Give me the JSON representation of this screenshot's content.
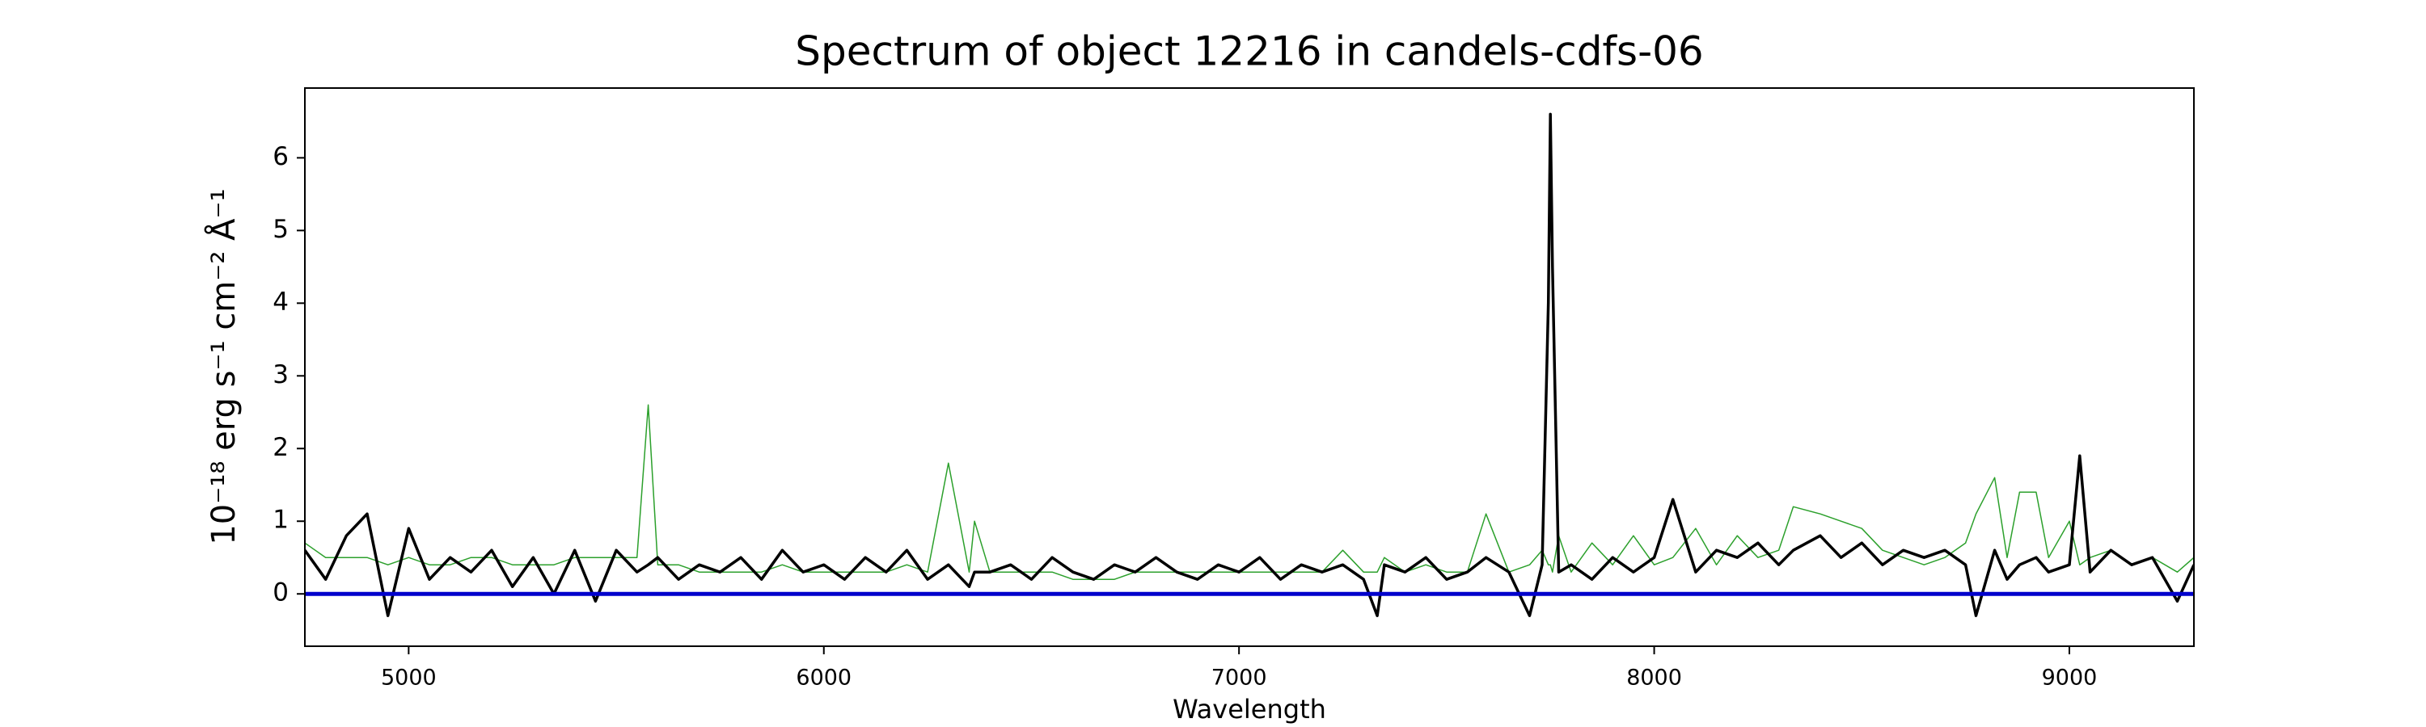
{
  "chart_data": {
    "type": "line",
    "title": "Spectrum of object 12216 in candels-cdfs-06",
    "xlabel": "Wavelength",
    "ylabel": "10⁻¹⁸ erg s⁻¹ cm⁻² Å⁻¹",
    "x": [
      4750,
      4800,
      4850,
      4900,
      4950,
      5000,
      5050,
      5100,
      5150,
      5200,
      5250,
      5300,
      5350,
      5400,
      5450,
      5500,
      5550,
      5577,
      5600,
      5650,
      5700,
      5750,
      5800,
      5850,
      5900,
      5950,
      6000,
      6050,
      6100,
      6150,
      6200,
      6250,
      6300,
      6350,
      6363,
      6400,
      6450,
      6500,
      6550,
      6600,
      6650,
      6700,
      6750,
      6800,
      6850,
      6900,
      6950,
      7000,
      7050,
      7100,
      7150,
      7200,
      7250,
      7300,
      7333,
      7350,
      7400,
      7450,
      7500,
      7550,
      7595,
      7650,
      7700,
      7730,
      7745,
      7750,
      7755,
      7770,
      7800,
      7850,
      7900,
      7950,
      8000,
      8045,
      8100,
      8150,
      8200,
      8250,
      8300,
      8335,
      8400,
      8450,
      8500,
      8550,
      8600,
      8650,
      8700,
      8750,
      8775,
      8820,
      8850,
      8880,
      8920,
      8950,
      9000,
      9025,
      9050,
      9100,
      9150,
      9200,
      9260,
      9300
    ],
    "series": [
      {
        "color": "#2ca02c",
        "width": 1.5,
        "values": [
          0.7,
          0.5,
          0.5,
          0.5,
          0.4,
          0.5,
          0.4,
          0.4,
          0.5,
          0.5,
          0.4,
          0.4,
          0.4,
          0.5,
          0.5,
          0.5,
          0.5,
          2.6,
          0.4,
          0.4,
          0.3,
          0.3,
          0.3,
          0.3,
          0.4,
          0.3,
          0.3,
          0.3,
          0.3,
          0.3,
          0.4,
          0.3,
          1.8,
          0.3,
          1.0,
          0.3,
          0.3,
          0.3,
          0.3,
          0.2,
          0.2,
          0.2,
          0.3,
          0.3,
          0.3,
          0.3,
          0.3,
          0.3,
          0.3,
          0.3,
          0.3,
          0.3,
          0.6,
          0.3,
          0.3,
          0.5,
          0.3,
          0.4,
          0.3,
          0.3,
          1.1,
          0.3,
          0.4,
          0.6,
          0.4,
          0.4,
          0.3,
          0.8,
          0.3,
          0.7,
          0.4,
          0.8,
          0.4,
          0.5,
          0.9,
          0.4,
          0.8,
          0.5,
          0.6,
          1.2,
          1.1,
          1.0,
          0.9,
          0.6,
          0.5,
          0.4,
          0.5,
          0.7,
          1.1,
          1.6,
          0.5,
          1.4,
          1.4,
          0.5,
          1.0,
          0.4,
          0.5,
          0.6,
          0.4,
          0.5,
          0.3,
          0.5
        ]
      },
      {
        "color": "#000000",
        "width": 3.5,
        "values": [
          0.6,
          0.2,
          0.8,
          1.1,
          -0.3,
          0.9,
          0.2,
          0.5,
          0.3,
          0.6,
          0.1,
          0.5,
          0.0,
          0.6,
          -0.1,
          0.6,
          0.3,
          0.4,
          0.5,
          0.2,
          0.4,
          0.3,
          0.5,
          0.2,
          0.6,
          0.3,
          0.4,
          0.2,
          0.5,
          0.3,
          0.6,
          0.2,
          0.4,
          0.1,
          0.3,
          0.3,
          0.4,
          0.2,
          0.5,
          0.3,
          0.2,
          0.4,
          0.3,
          0.5,
          0.3,
          0.2,
          0.4,
          0.3,
          0.5,
          0.2,
          0.4,
          0.3,
          0.4,
          0.2,
          -0.3,
          0.4,
          0.3,
          0.5,
          0.2,
          0.3,
          0.5,
          0.3,
          -0.3,
          0.4,
          4.0,
          6.6,
          4.5,
          0.3,
          0.4,
          0.2,
          0.5,
          0.3,
          0.5,
          1.3,
          0.3,
          0.6,
          0.5,
          0.7,
          0.4,
          0.6,
          0.8,
          0.5,
          0.7,
          0.4,
          0.6,
          0.5,
          0.6,
          0.4,
          -0.3,
          0.6,
          0.2,
          0.4,
          0.5,
          0.3,
          0.4,
          1.9,
          0.3,
          0.6,
          0.4,
          0.5,
          -0.1,
          0.4
        ]
      }
    ],
    "hlines": [
      {
        "value": 0,
        "color": "#0000cc"
      }
    ],
    "xlim": [
      4750,
      9300
    ],
    "ylim": [
      -0.72,
      6.96
    ],
    "xticks": [
      5000,
      6000,
      7000,
      8000,
      9000
    ],
    "yticks": [
      0,
      1,
      2,
      3,
      4,
      5,
      6
    ],
    "grid": false
  }
}
